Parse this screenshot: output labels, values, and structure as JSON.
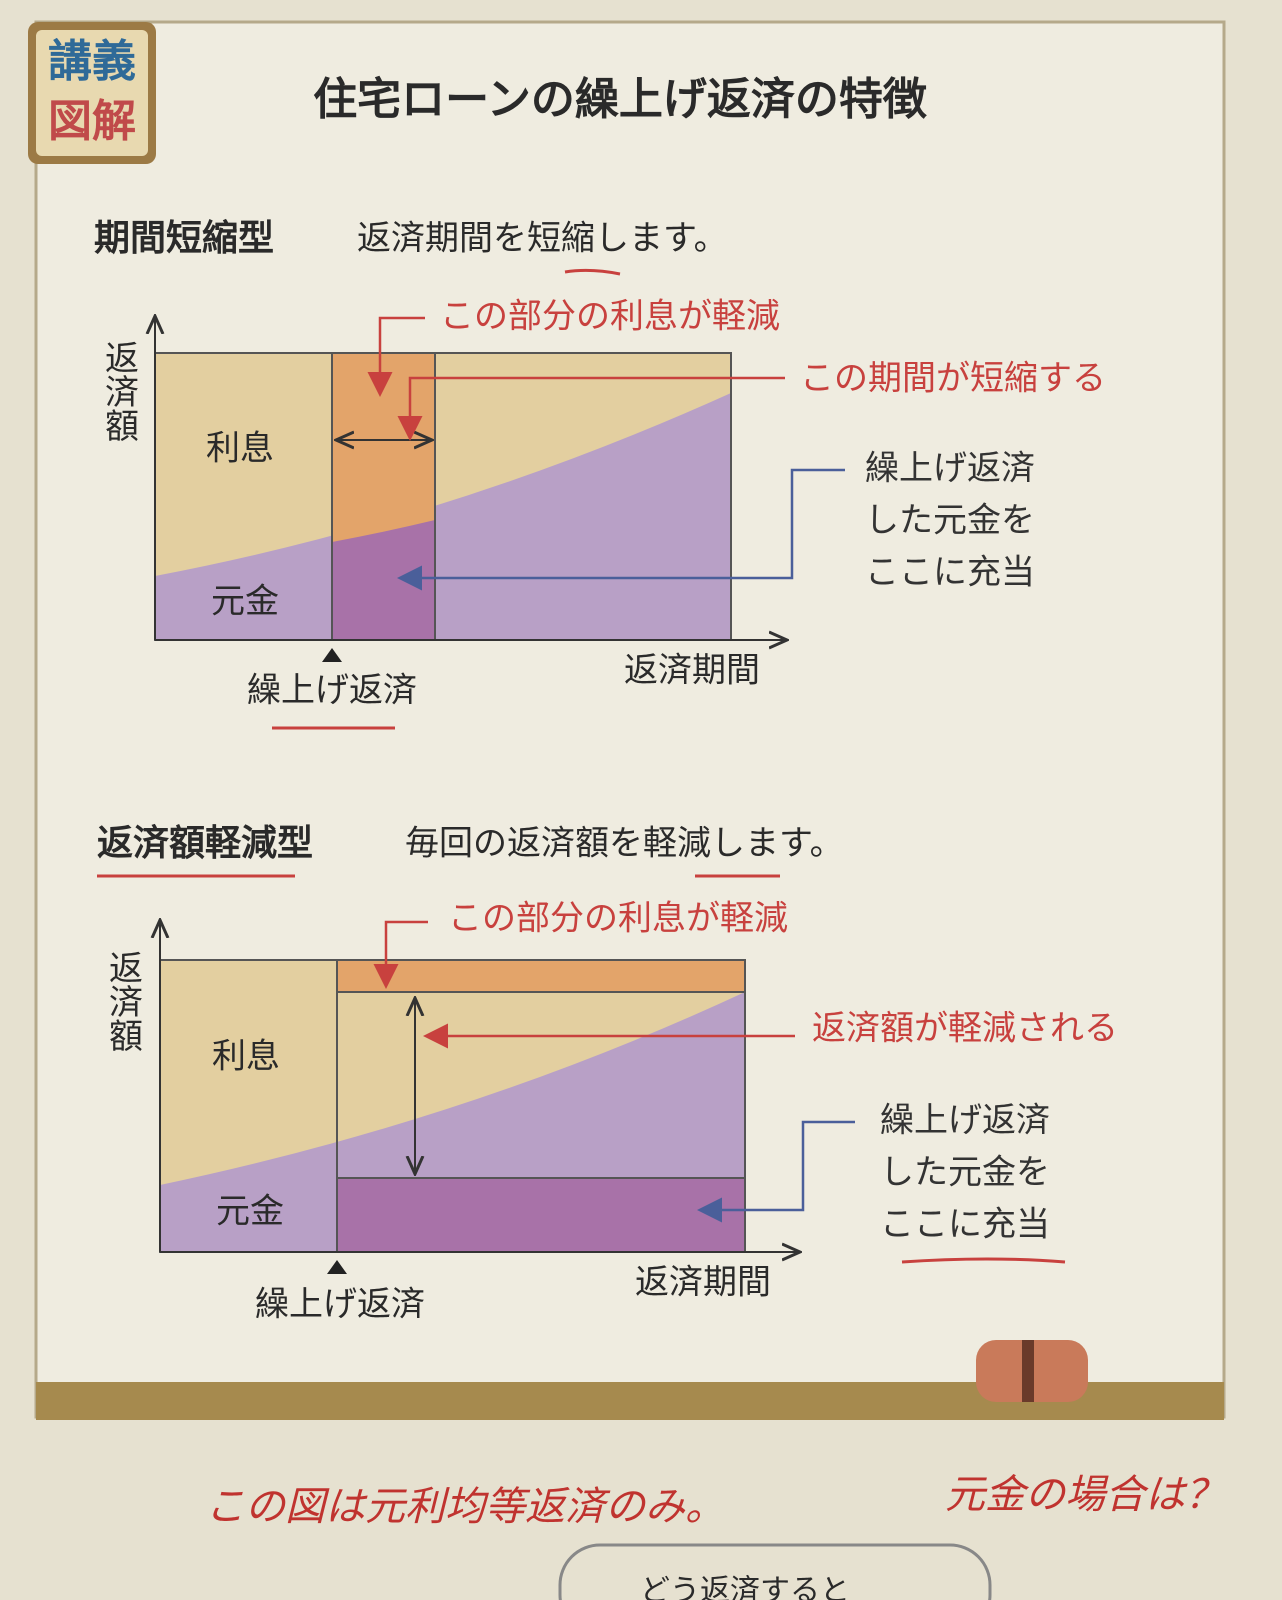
{
  "badge": {
    "line1": "講義",
    "line2": "図解"
  },
  "title": "住宅ローンの繰上げ返済の特徴",
  "sections": [
    {
      "heading": "期間短縮型",
      "description": "返済期間を短縮します。",
      "y_axis_label": "返済額",
      "x_axis_label": "返済期間",
      "interest_label": "利息",
      "principal_label": "元金",
      "prepayment_label": "繰上げ返済",
      "callout_interest": "この部分の利息が軽減",
      "callout_effect": "この期間が短縮する",
      "callout_principal": [
        "繰上げ返済",
        "した元金を",
        "ここに充当"
      ]
    },
    {
      "heading": "返済額軽減型",
      "description": "毎回の返済額を軽減します。",
      "y_axis_label": "返済額",
      "x_axis_label": "返済期間",
      "interest_label": "利息",
      "principal_label": "元金",
      "prepayment_label": "繰上げ返済",
      "callout_interest": "この部分の利息が軽減",
      "callout_effect": "返済額が軽減される",
      "callout_principal": [
        "繰上げ返済",
        "した元金を",
        "ここに充当"
      ]
    }
  ],
  "handwritten_note": {
    "part1": "この図は元利均等返済のみ。",
    "part2": "元金の場合は？"
  },
  "footer_fragment": "どう返済すると"
}
